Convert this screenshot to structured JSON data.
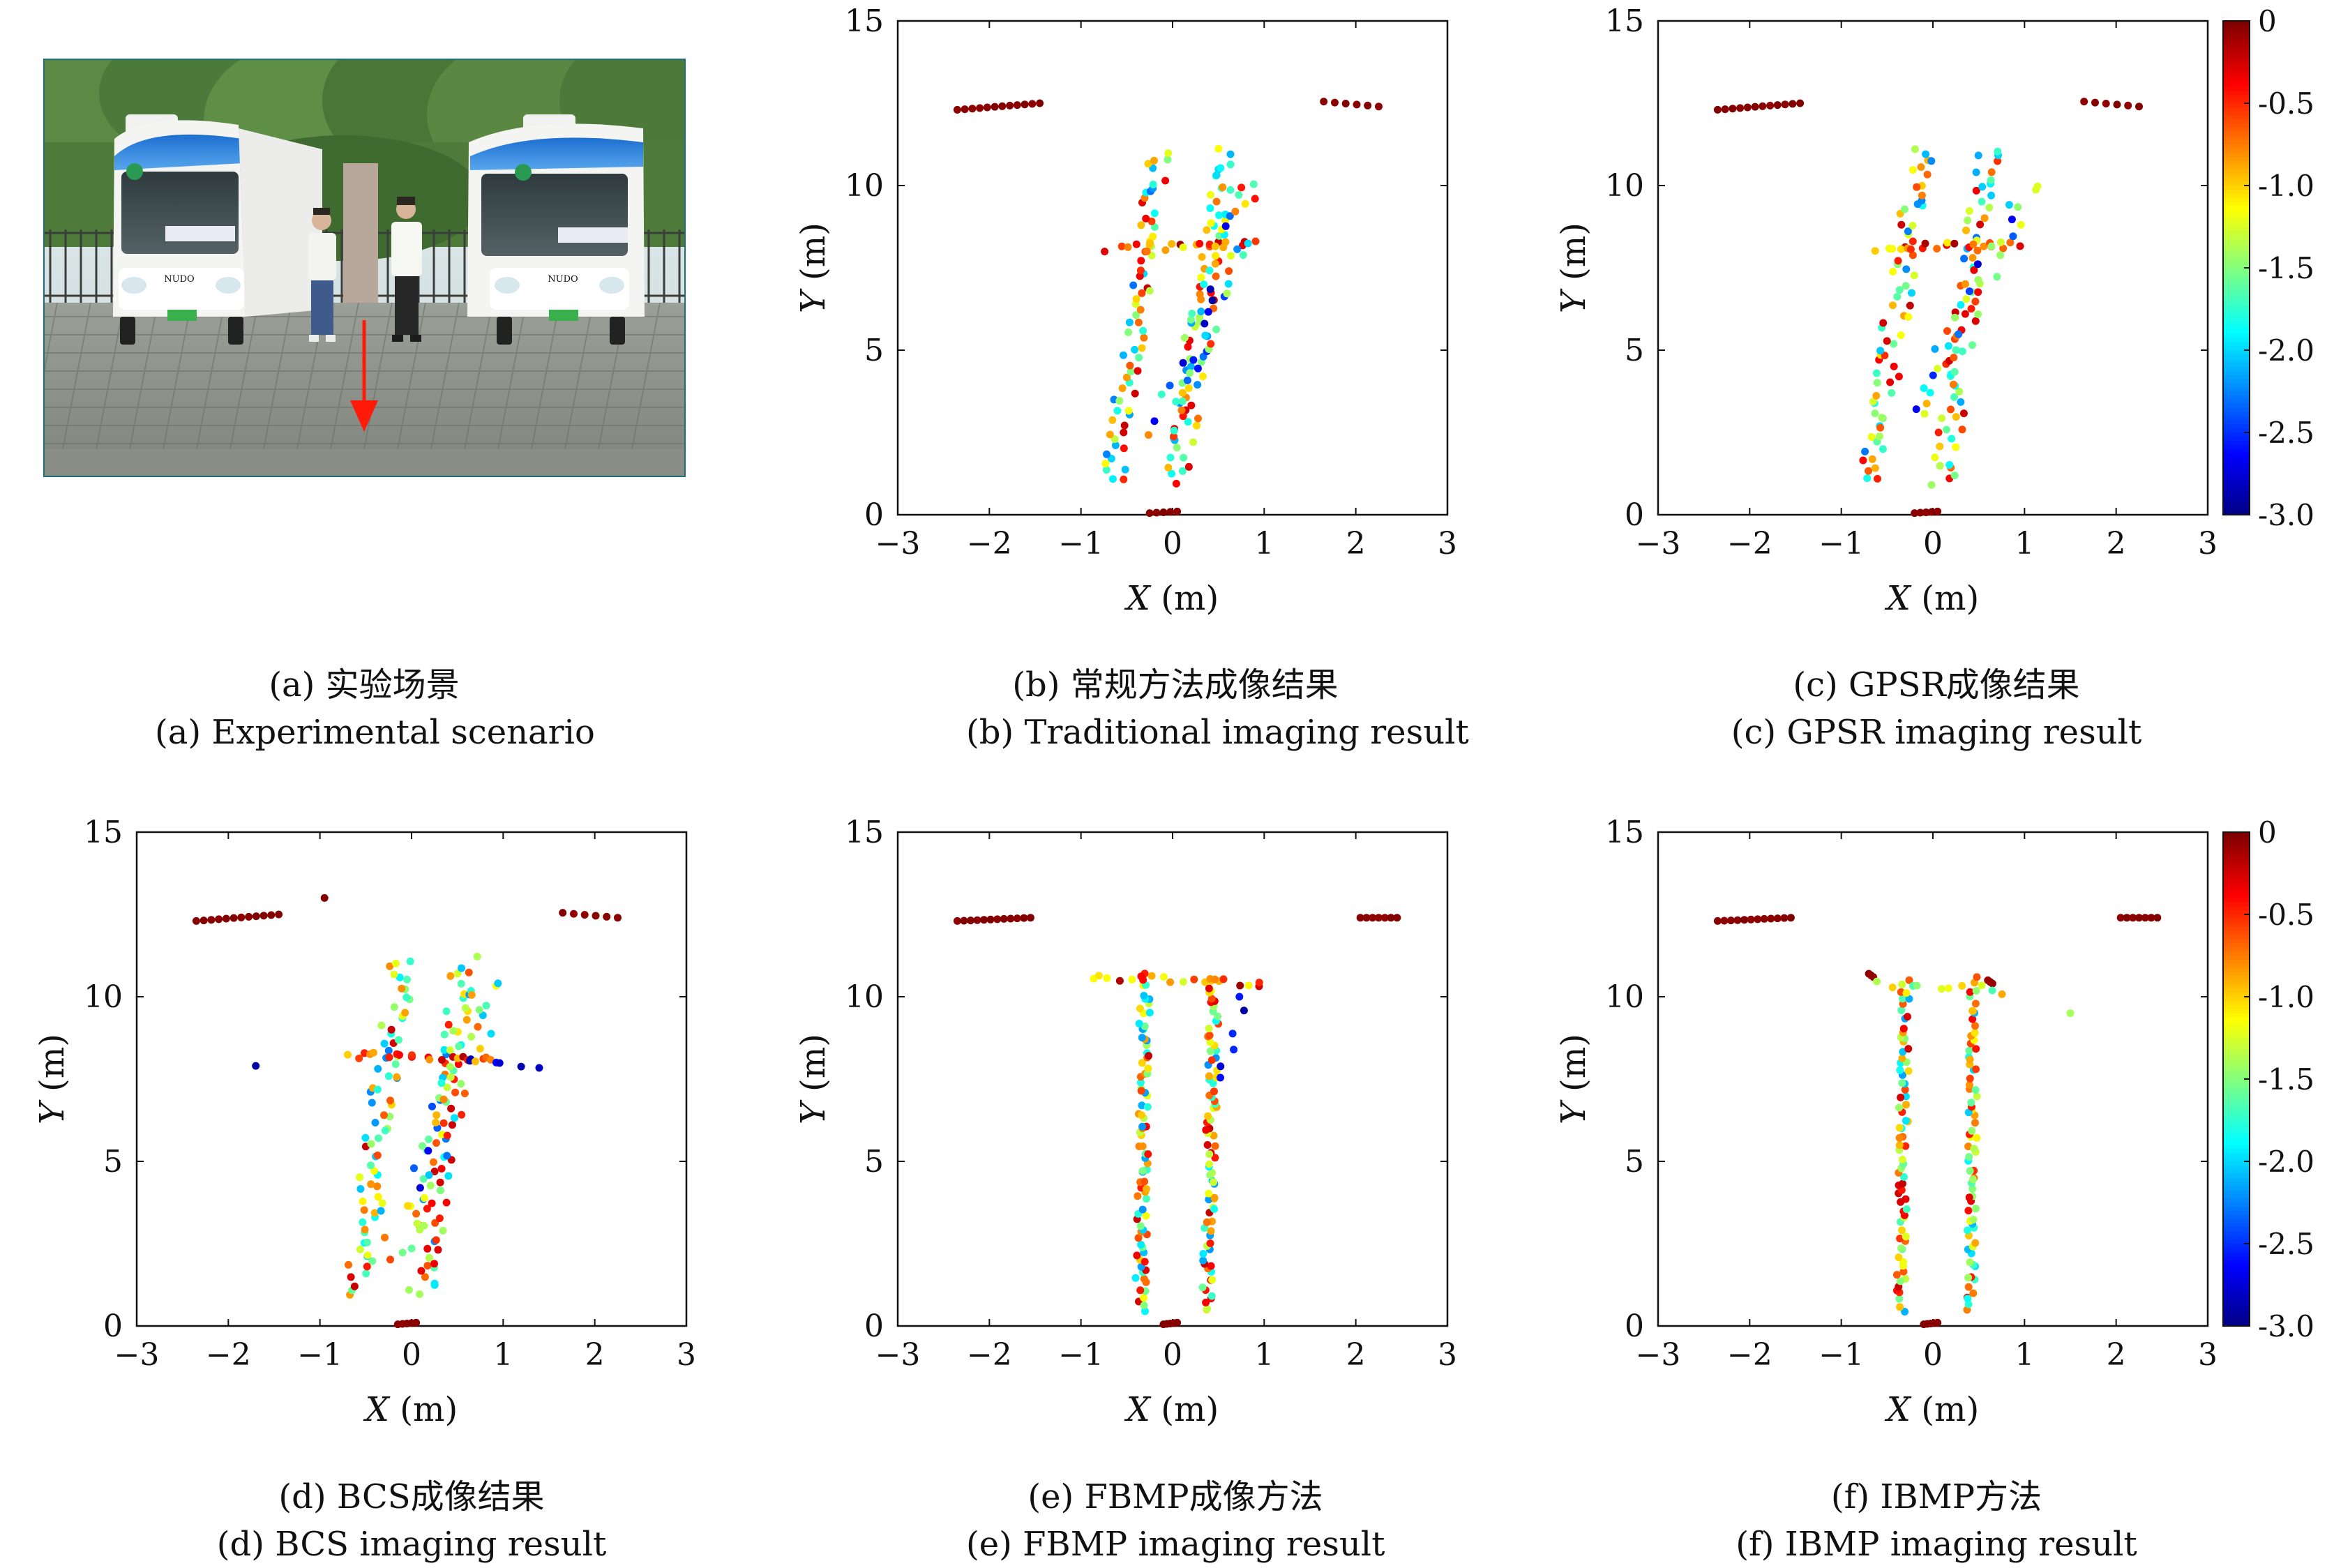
{
  "panels": [
    {
      "id": "a",
      "type": "photo",
      "caption_zh": "(a) 实验场景",
      "caption_en": "(a) Experimental scenario",
      "photo": {
        "bus_badge": "NUDO",
        "colors": {
          "sky": "#cfe0ea",
          "trees": "#4f7a3c",
          "pavement": "#8c8f85",
          "bus_body": "#f4f5f3",
          "bus_roof": "#2f7fd6",
          "arrow": "#ff1a0a"
        }
      }
    },
    {
      "id": "b",
      "type": "scatter",
      "caption_zh": "(b) 常规方法成像结果",
      "caption_en": "(b) Traditional imaging result",
      "colorbar": false
    },
    {
      "id": "c",
      "type": "scatter",
      "caption_zh": "(c) GPSR成像结果",
      "caption_en": "(c) GPSR imaging result",
      "colorbar": true
    },
    {
      "id": "d",
      "type": "scatter",
      "caption_zh": "(d) BCS成像结果",
      "caption_en": "(d) BCS imaging result",
      "colorbar": false
    },
    {
      "id": "e",
      "type": "scatter",
      "caption_zh": "(e) FBMP成像方法",
      "caption_en": "(e) FBMP imaging result",
      "colorbar": false
    },
    {
      "id": "f",
      "type": "scatter",
      "caption_zh": "(f) IBMP方法",
      "caption_en": "(f) IBMP imaging result",
      "colorbar": true
    }
  ],
  "chart_data": [
    {
      "panel": "b",
      "type": "scatter",
      "xlabel_var": "X",
      "xlabel_unit": "(m)",
      "ylabel_var": "Y",
      "ylabel_unit": "(m)",
      "xlim": [
        -3,
        3
      ],
      "ylim": [
        0,
        15
      ],
      "xticks": [
        "−3",
        "−2",
        "−1",
        "0",
        "1",
        "2",
        "3"
      ],
      "yticks": [
        "0",
        "5",
        "10",
        "15"
      ],
      "colormap": "jet",
      "clim": [
        -3,
        0
      ],
      "groups": [
        {
          "name": "",
          "from": [
            -2.35,
            12.3
          ],
          "to": [
            -1.45,
            12.5
          ],
          "n": 12,
          "vmin": -0.05,
          "vmax": 0
        },
        {
          "name": "",
          "from": [
            1.65,
            12.55
          ],
          "to": [
            2.25,
            12.4
          ],
          "n": 6,
          "vmin": -0.05,
          "vmax": 0
        },
        {
          "name": "",
          "from": [
            -0.25,
            0.05
          ],
          "to": [
            0.05,
            0.1
          ],
          "n": 5,
          "vmin": -0.05,
          "vmax": 0
        },
        {
          "name": "",
          "from": [
            -0.65,
            0.95
          ],
          "to": [
            -0.15,
            11.0
          ],
          "n": 70,
          "jitter": 0.12,
          "vmin": -2.3,
          "vmax": -0.2
        },
        {
          "name": "",
          "from": [
            0.05,
            1.0
          ],
          "to": [
            0.6,
            11.0
          ],
          "n": 75,
          "jitter": 0.12,
          "vmin": -2.3,
          "vmax": -0.2
        },
        {
          "name": "",
          "from": [
            -0.7,
            8.1
          ],
          "to": [
            0.9,
            8.2
          ],
          "n": 18,
          "jitter": 0.06,
          "vmin": -1.2,
          "vmax": -0.1
        },
        {
          "name": "",
          "from": [
            -0.1,
            2.5
          ],
          "to": [
            0.9,
            10.0
          ],
          "n": 45,
          "jitter": 0.18,
          "vmin": -2.9,
          "vmax": -0.4
        }
      ]
    },
    {
      "panel": "c",
      "type": "scatter",
      "xlabel_var": "X",
      "xlabel_unit": "(m)",
      "ylabel_var": "Y",
      "ylabel_unit": "(m)",
      "xlim": [
        -3,
        3
      ],
      "ylim": [
        0,
        15
      ],
      "xticks": [
        "−3",
        "−2",
        "−1",
        "0",
        "1",
        "2",
        "3"
      ],
      "yticks": [
        "0",
        "5",
        "10",
        "15"
      ],
      "colormap": "jet",
      "clim": [
        -3,
        0
      ],
      "colorbar_ticks": [
        "0",
        "-0.5",
        "-1.0",
        "-1.5",
        "-2.0",
        "-2.5",
        "-3.0"
      ],
      "groups": [
        {
          "name": "",
          "from": [
            -2.35,
            12.3
          ],
          "to": [
            -1.45,
            12.5
          ],
          "n": 12,
          "vmin": -0.05,
          "vmax": 0
        },
        {
          "name": "",
          "from": [
            1.65,
            12.55
          ],
          "to": [
            2.25,
            12.4
          ],
          "n": 6,
          "vmin": -0.05,
          "vmax": 0
        },
        {
          "name": "",
          "from": [
            -0.2,
            0.05
          ],
          "to": [
            0.05,
            0.1
          ],
          "n": 5,
          "vmin": -0.05,
          "vmax": 0
        },
        {
          "name": "",
          "from": [
            -0.7,
            1.0
          ],
          "to": [
            -0.1,
            11.1
          ],
          "n": 70,
          "jitter": 0.14,
          "vmin": -2.3,
          "vmax": -0.2
        },
        {
          "name": "",
          "from": [
            0.1,
            0.9
          ],
          "to": [
            0.6,
            11.1
          ],
          "n": 70,
          "jitter": 0.14,
          "vmin": -2.3,
          "vmax": -0.2
        },
        {
          "name": "",
          "from": [
            -0.6,
            8.1
          ],
          "to": [
            0.9,
            8.2
          ],
          "n": 20,
          "jitter": 0.06,
          "vmin": -1.2,
          "vmax": -0.1
        },
        {
          "name": "",
          "from": [
            -0.2,
            3.0
          ],
          "to": [
            1.0,
            10.0
          ],
          "n": 30,
          "jitter": 0.18,
          "vmin": -2.9,
          "vmax": -0.5
        }
      ]
    },
    {
      "panel": "d",
      "type": "scatter",
      "xlabel_var": "X",
      "xlabel_unit": "(m)",
      "ylabel_var": "Y",
      "ylabel_unit": "(m)",
      "xlim": [
        -3,
        3
      ],
      "ylim": [
        0,
        15
      ],
      "xticks": [
        "−3",
        "−2",
        "−1",
        "0",
        "1",
        "2",
        "3"
      ],
      "yticks": [
        "0",
        "5",
        "10",
        "15"
      ],
      "colormap": "jet",
      "clim": [
        -3,
        0
      ],
      "groups": [
        {
          "name": "",
          "from": [
            -2.35,
            12.3
          ],
          "to": [
            -1.45,
            12.5
          ],
          "n": 12,
          "vmin": -0.05,
          "vmax": 0
        },
        {
          "name": "",
          "from": [
            1.65,
            12.55
          ],
          "to": [
            2.25,
            12.4
          ],
          "n": 6,
          "vmin": -0.05,
          "vmax": 0
        },
        {
          "name": "",
          "from": [
            -0.95,
            13.0
          ],
          "to": [
            -0.95,
            13.0
          ],
          "n": 1,
          "vmin": -0.05,
          "vmax": 0
        },
        {
          "name": "",
          "from": [
            -1.7,
            7.9
          ],
          "to": [
            -1.7,
            7.9
          ],
          "n": 1,
          "vmin": -2.9,
          "vmax": -2.9
        },
        {
          "name": "",
          "from": [
            -0.15,
            0.05
          ],
          "to": [
            0.05,
            0.1
          ],
          "n": 5,
          "vmin": -0.05,
          "vmax": 0
        },
        {
          "name": "",
          "from": [
            -0.6,
            1.0
          ],
          "to": [
            -0.1,
            11.1
          ],
          "n": 75,
          "jitter": 0.15,
          "vmin": -2.3,
          "vmax": -0.2
        },
        {
          "name": "",
          "from": [
            0.1,
            0.9
          ],
          "to": [
            0.6,
            11.1
          ],
          "n": 75,
          "jitter": 0.15,
          "vmin": -2.3,
          "vmax": -0.2
        },
        {
          "name": "",
          "from": [
            -0.7,
            8.2
          ],
          "to": [
            0.9,
            8.2
          ],
          "n": 20,
          "jitter": 0.06,
          "vmin": -1.0,
          "vmax": -0.1
        },
        {
          "name": "",
          "from": [
            0.6,
            8.0
          ],
          "to": [
            1.3,
            7.9
          ],
          "n": 6,
          "jitter": 0.1,
          "vmin": -2.9,
          "vmax": -2.5
        },
        {
          "name": "",
          "from": [
            -0.2,
            2.0
          ],
          "to": [
            0.9,
            10.5
          ],
          "n": 40,
          "jitter": 0.2,
          "vmin": -2.9,
          "vmax": -0.4
        }
      ]
    },
    {
      "panel": "e",
      "type": "scatter",
      "xlabel_var": "X",
      "xlabel_unit": "(m)",
      "ylabel_var": "Y",
      "ylabel_unit": "(m)",
      "xlim": [
        -3,
        3
      ],
      "ylim": [
        0,
        15
      ],
      "xticks": [
        "−3",
        "−2",
        "−1",
        "0",
        "1",
        "2",
        "3"
      ],
      "yticks": [
        "0",
        "5",
        "10",
        "15"
      ],
      "colormap": "jet",
      "clim": [
        -3,
        0
      ],
      "groups": [
        {
          "name": "",
          "from": [
            -2.35,
            12.3
          ],
          "to": [
            -1.55,
            12.4
          ],
          "n": 12,
          "vmin": -0.05,
          "vmax": 0
        },
        {
          "name": "",
          "from": [
            2.05,
            12.4
          ],
          "to": [
            2.45,
            12.4
          ],
          "n": 7,
          "vmin": -0.05,
          "vmax": 0
        },
        {
          "name": "",
          "from": [
            -0.1,
            0.05
          ],
          "to": [
            0.05,
            0.1
          ],
          "n": 5,
          "vmin": -0.05,
          "vmax": 0
        },
        {
          "name": "",
          "from": [
            -0.35,
            0.5
          ],
          "to": [
            -0.3,
            10.6
          ],
          "n": 85,
          "jitter": 0.06,
          "vmin": -2.2,
          "vmax": -0.2
        },
        {
          "name": "",
          "from": [
            0.38,
            0.5
          ],
          "to": [
            0.45,
            10.6
          ],
          "n": 85,
          "jitter": 0.06,
          "vmin": -2.2,
          "vmax": -0.2
        },
        {
          "name": "",
          "from": [
            -0.9,
            10.6
          ],
          "to": [
            1.0,
            10.4
          ],
          "n": 20,
          "jitter": 0.06,
          "vmin": -1.3,
          "vmax": -0.05
        },
        {
          "name": "",
          "from": [
            0.55,
            7.5
          ],
          "to": [
            0.8,
            10.0
          ],
          "n": 6,
          "jitter": 0.08,
          "vmin": -2.9,
          "vmax": -2.5
        }
      ]
    },
    {
      "panel": "f",
      "type": "scatter",
      "xlabel_var": "X",
      "xlabel_unit": "(m)",
      "ylabel_var": "Y",
      "ylabel_unit": "(m)",
      "xlim": [
        -3,
        3
      ],
      "ylim": [
        0,
        15
      ],
      "xticks": [
        "−3",
        "−2",
        "−1",
        "0",
        "1",
        "2",
        "3"
      ],
      "yticks": [
        "0",
        "5",
        "10",
        "15"
      ],
      "colormap": "jet",
      "clim": [
        -3,
        0
      ],
      "colorbar_ticks": [
        "0",
        "-0.5",
        "-1.0",
        "-1.5",
        "-2.0",
        "-2.5",
        "-3.0"
      ],
      "groups": [
        {
          "name": "",
          "from": [
            -2.35,
            12.3
          ],
          "to": [
            -1.55,
            12.4
          ],
          "n": 12,
          "vmin": -0.05,
          "vmax": 0
        },
        {
          "name": "",
          "from": [
            2.05,
            12.4
          ],
          "to": [
            2.45,
            12.4
          ],
          "n": 7,
          "vmin": -0.05,
          "vmax": 0
        },
        {
          "name": "",
          "from": [
            -0.1,
            0.05
          ],
          "to": [
            0.05,
            0.1
          ],
          "n": 5,
          "vmin": -0.05,
          "vmax": 0
        },
        {
          "name": "",
          "from": [
            -0.35,
            0.5
          ],
          "to": [
            -0.3,
            10.5
          ],
          "n": 75,
          "jitter": 0.05,
          "vmin": -2.2,
          "vmax": -0.2
        },
        {
          "name": "",
          "from": [
            0.42,
            0.5
          ],
          "to": [
            0.45,
            10.5
          ],
          "n": 75,
          "jitter": 0.05,
          "vmin": -2.2,
          "vmax": -0.2
        },
        {
          "name": "",
          "from": [
            -0.7,
            10.7
          ],
          "to": [
            -0.65,
            10.6
          ],
          "n": 3,
          "vmin": -0.1,
          "vmax": -0.05
        },
        {
          "name": "",
          "from": [
            0.6,
            10.5
          ],
          "to": [
            0.65,
            10.4
          ],
          "n": 3,
          "vmin": -0.1,
          "vmax": -0.05
        },
        {
          "name": "",
          "from": [
            -0.6,
            10.4
          ],
          "to": [
            0.8,
            10.2
          ],
          "n": 10,
          "jitter": 0.08,
          "vmin": -1.8,
          "vmax": -0.8
        },
        {
          "name": "",
          "from": [
            1.5,
            9.5
          ],
          "to": [
            1.5,
            9.5
          ],
          "n": 1,
          "vmin": -1.4,
          "vmax": -1.4
        }
      ]
    }
  ]
}
